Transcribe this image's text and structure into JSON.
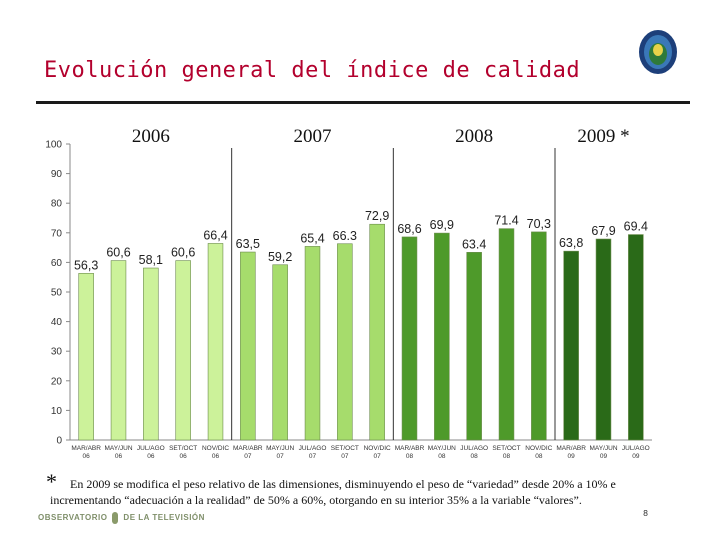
{
  "slide": {
    "title": "Evolución general del índice de calidad",
    "footnote_star": "*",
    "footnote_line1": "En 2009 se modifica el peso relativo de las dimensiones,  disminuyendo el peso de “variedad” desde 20% a 10% e",
    "footnote_line2": "incrementando “adecuación a la realidad” de  50% a 60%, otorgando en su interior 35%  a la variable “valores”.",
    "brand_left": "OBSERVATORIO",
    "brand_right": "DE LA TELEVISIÓN",
    "page_number": "8",
    "logo_icon": "institution-seal-icon"
  },
  "chart_data": {
    "type": "bar",
    "ylim": [
      0,
      100
    ],
    "yticks": [
      0,
      10,
      20,
      30,
      40,
      50,
      60,
      70,
      80,
      90,
      100
    ],
    "categories": [
      [
        "MAR/ABR",
        "06"
      ],
      [
        "MAY/JUN",
        "06"
      ],
      [
        "JUL/AGO",
        "06"
      ],
      [
        "SET/OCT",
        "06"
      ],
      [
        "NOV/DIC",
        "06"
      ],
      [
        "MAR/ABR",
        "07"
      ],
      [
        "MAY/JUN",
        "07"
      ],
      [
        "JUL/AGO",
        "07"
      ],
      [
        "SET/OCT",
        "07"
      ],
      [
        "NOV/DIC",
        "07"
      ],
      [
        "MAR/ABR",
        "08"
      ],
      [
        "MAY/JUN",
        "08"
      ],
      [
        "JUL/AGO",
        "08"
      ],
      [
        "SET/OCT",
        "08"
      ],
      [
        "NOV/DIC",
        "08"
      ],
      [
        "MAR/ABR",
        "09"
      ],
      [
        "MAY/JUN",
        "09"
      ],
      [
        "JUL/AGO",
        "09"
      ]
    ],
    "values": [
      56.3,
      60.6,
      58.1,
      60.6,
      66.4,
      63.5,
      59.2,
      65.4,
      66.3,
      72.9,
      68.6,
      69.9,
      63.4,
      71.4,
      70.3,
      63.8,
      67.9,
      69.4
    ],
    "value_labels": [
      "56,3",
      "60,6",
      "58,1",
      "60,6",
      "66,4",
      "63,5",
      "59,2",
      "65,4",
      "66.3",
      "72,9",
      "68,6",
      "69,9",
      "63.4",
      "71.4",
      "70,3",
      "63,8",
      "67,9",
      "69.4"
    ],
    "groups": [
      {
        "label": "2006",
        "start": 0,
        "count": 5,
        "color": "#ccf29a"
      },
      {
        "label": "2007",
        "start": 5,
        "count": 5,
        "color": "#a6dc6c"
      },
      {
        "label": "2008",
        "start": 10,
        "count": 5,
        "color": "#4e9a2a"
      },
      {
        "label": "2009 *",
        "start": 15,
        "count": 3,
        "color": "#2a6a18"
      }
    ],
    "grid": false
  }
}
